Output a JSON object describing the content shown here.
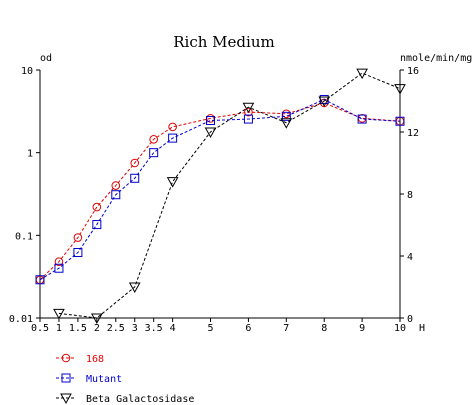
{
  "chart_data": {
    "type": "line",
    "title": "Rich Medium",
    "left_axis_unit": "od",
    "right_axis_unit": "nmole/min/mg",
    "x_unit": "H",
    "x_ticks": [
      "0.5",
      "1",
      "1.5",
      "2",
      "2.5",
      "3",
      "3.5",
      "4",
      "5",
      "6",
      "7",
      "8",
      "9",
      "10"
    ],
    "x_tick_values": [
      0.5,
      1,
      1.5,
      2,
      2.5,
      3,
      3.5,
      4,
      5,
      6,
      7,
      8,
      9,
      10
    ],
    "y_left_ticks": [
      "0.01",
      "0.1",
      "1",
      "10"
    ],
    "y_left_scale": "log",
    "y_left_range": [
      0.01,
      10
    ],
    "y_right_ticks": [
      "0",
      "4",
      "8",
      "12",
      "16"
    ],
    "y_right_range": [
      0,
      16
    ],
    "grid": false,
    "series": [
      {
        "name": "168",
        "axis": "left",
        "color": "#e00000",
        "marker": "circle",
        "x": [
          0.5,
          1,
          1.5,
          2,
          2.5,
          3,
          3.5,
          4,
          5,
          6,
          7,
          8,
          9,
          10
        ],
        "y": [
          0.029,
          0.048,
          0.094,
          0.22,
          0.4,
          0.75,
          1.45,
          2.05,
          2.6,
          3.1,
          2.95,
          4.0,
          2.6,
          2.4
        ]
      },
      {
        "name": "Mutant",
        "axis": "left",
        "color": "#0000d0",
        "marker": "square",
        "x": [
          0.5,
          1,
          1.5,
          2,
          2.5,
          3,
          3.5,
          4,
          5,
          6,
          7,
          8,
          9,
          10
        ],
        "y": [
          0.029,
          0.04,
          0.062,
          0.135,
          0.31,
          0.49,
          1.0,
          1.5,
          2.45,
          2.55,
          2.75,
          4.4,
          2.55,
          2.4
        ]
      },
      {
        "name": "Beta Galactosidase",
        "axis": "right",
        "color": "#000000",
        "marker": "triangle-down",
        "x": [
          1,
          2,
          3,
          4,
          5,
          6,
          7,
          8,
          9,
          10
        ],
        "y": [
          0.3,
          0.0,
          2.0,
          8.8,
          12.0,
          13.6,
          12.6,
          14.0,
          15.8,
          14.8
        ]
      }
    ]
  }
}
